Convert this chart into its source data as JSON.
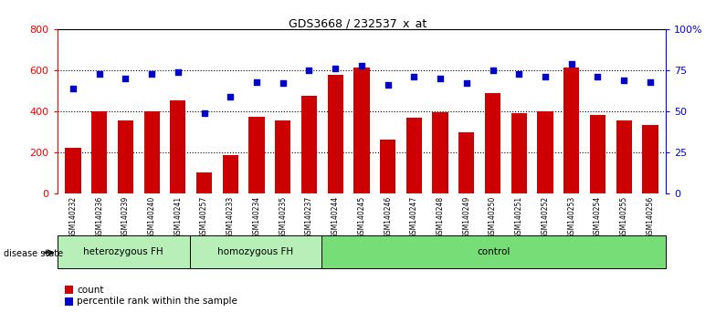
{
  "title": "GDS3668 / 232537_x_at",
  "samples": [
    "GSM140232",
    "GSM140236",
    "GSM140239",
    "GSM140240",
    "GSM140241",
    "GSM140257",
    "GSM140233",
    "GSM140234",
    "GSM140235",
    "GSM140237",
    "GSM140244",
    "GSM140245",
    "GSM140246",
    "GSM140247",
    "GSM140248",
    "GSM140249",
    "GSM140250",
    "GSM140251",
    "GSM140252",
    "GSM140253",
    "GSM140254",
    "GSM140255",
    "GSM140256"
  ],
  "counts": [
    225,
    400,
    355,
    400,
    455,
    105,
    190,
    375,
    355,
    475,
    580,
    615,
    265,
    370,
    395,
    300,
    490,
    390,
    400,
    615,
    385,
    355,
    335
  ],
  "percentiles": [
    64,
    73,
    70,
    73,
    74,
    49,
    59,
    68,
    67,
    75,
    76,
    78,
    66,
    71,
    70,
    67,
    75,
    73,
    71,
    79,
    71,
    69,
    68
  ],
  "group_boundaries": [
    0,
    5,
    10,
    23
  ],
  "group_labels": [
    "heterozygous FH",
    "homozygous FH",
    "control"
  ],
  "group_colors": [
    "#b8efb8",
    "#b8efb8",
    "#77dd77"
  ],
  "bar_color": "#cc0000",
  "dot_color": "#0000cc",
  "ylim_left": [
    0,
    800
  ],
  "ylim_right": [
    0,
    100
  ],
  "yticks_left": [
    0,
    200,
    400,
    600,
    800
  ],
  "yticks_right": [
    0,
    25,
    50,
    75,
    100
  ],
  "ytick_labels_right": [
    "0",
    "25",
    "50",
    "75",
    "100%"
  ],
  "grid_values": [
    200,
    400,
    600
  ]
}
